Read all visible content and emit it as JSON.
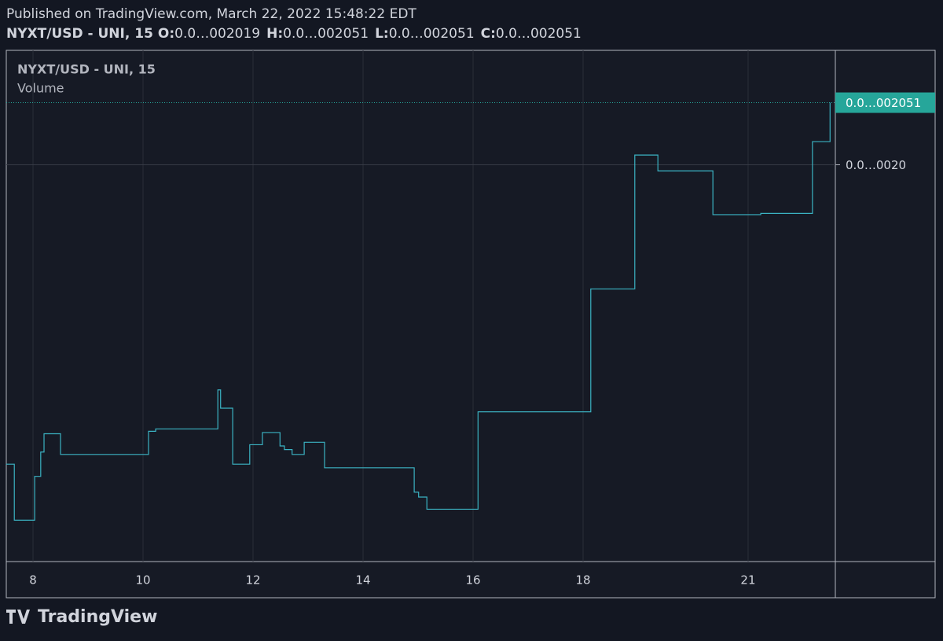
{
  "header": {
    "published": "Published on TradingView.com, March 22, 2022 15:48:22 EDT",
    "symbol": "NYXT/USD - UNI, 15",
    "ohlc": [
      {
        "name": "O:",
        "label": "0.0…002019"
      },
      {
        "name": "H:",
        "label": "0.0…002051"
      },
      {
        "name": "L:",
        "label": "0.0…002051"
      },
      {
        "name": "C:",
        "label": "0.0…002051"
      }
    ]
  },
  "chart_data": {
    "type": "step",
    "legend": [
      "NYXT/USD - UNI, 15",
      "Volume"
    ],
    "x": [
      7.51,
      7.66,
      8.03,
      8.14,
      8.2,
      8.5,
      10.1,
      10.23,
      11.36,
      11.41,
      11.63,
      11.94,
      12.17,
      12.49,
      12.57,
      12.71,
      12.93,
      13.3,
      14.93,
      15.01,
      15.16,
      16.09,
      18.14,
      18.94,
      19.36,
      20.36,
      21.23,
      22.17,
      22.49
    ],
    "series": [
      {
        "name": "NYXT/USD - UNI, 15",
        "color": "#3bb3c3",
        "values": [
          0.001754,
          0.001708,
          0.001744,
          0.001764,
          0.001779,
          0.001762,
          0.001781,
          0.001783,
          0.001815,
          0.0018,
          0.001754,
          0.00177,
          0.00178,
          0.001769,
          0.001766,
          0.001762,
          0.001772,
          0.001751,
          0.001731,
          0.001727,
          0.001717,
          0.001797,
          0.001898,
          0.002008,
          0.001995,
          0.001959,
          0.00196,
          0.002019,
          0.002051
        ]
      }
    ],
    "down_color": "#ef5350",
    "xlim": [
      7.514,
      22.586
    ],
    "xticks": [
      8,
      10,
      12,
      14,
      16,
      18,
      21
    ],
    "ylim": [
      0.001674,
      0.002094
    ],
    "yticks": [
      {
        "value": 0.002,
        "label": "0.0…0020"
      }
    ],
    "last_price": {
      "value": 0.002051,
      "label": "0.0…002051"
    },
    "grid": true
  },
  "footer": {
    "brand": "TradingView"
  }
}
